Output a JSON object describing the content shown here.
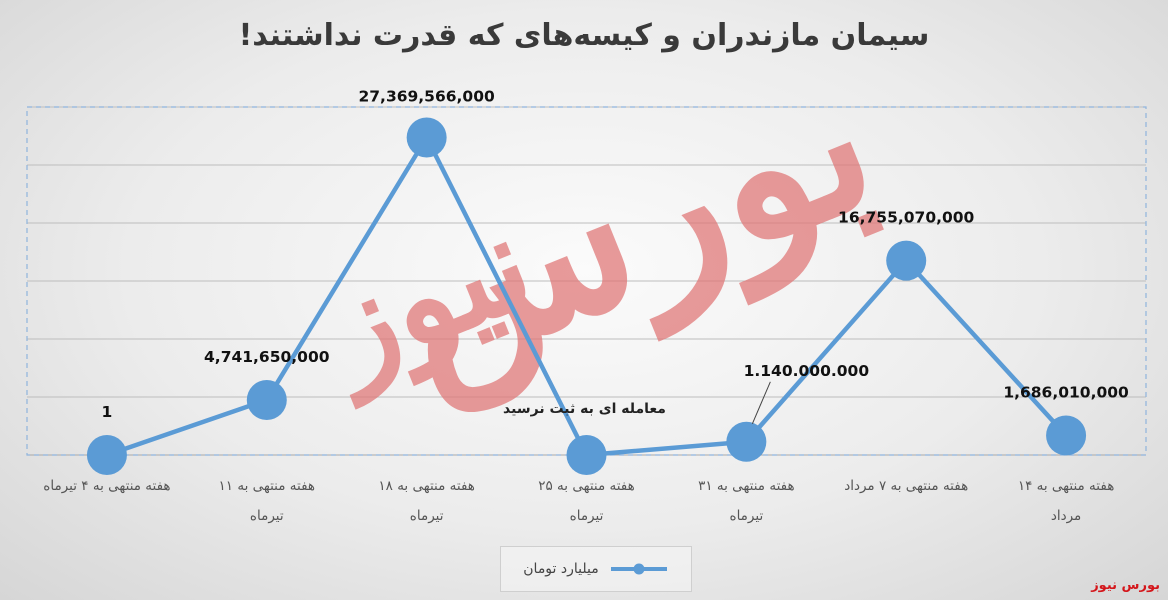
{
  "chart_data": {
    "type": "line",
    "title": "سیمان مازندران و کیسه‌های که قدرت نداشتند!",
    "categories": [
      [
        "هفته منتهی به ۴ تیرماه"
      ],
      [
        "هفته منتهی به ۱۱",
        "تیرماه"
      ],
      [
        "هفته منتهی به ۱۸",
        "تیرماه"
      ],
      [
        "هفته منتهی به ۲۵",
        "تیرماه"
      ],
      [
        "هفته منتهی به ۳۱",
        "تیرماه"
      ],
      [
        "هفته منتهی به ۷ مرداد"
      ],
      [
        "هفته منتهی به ۱۴",
        "مرداد"
      ]
    ],
    "series": [
      {
        "name": "میلیارد تومان",
        "color": "#5b9bd5",
        "values": [
          1,
          4741650000,
          27369566000,
          0,
          1140000000,
          16755070000,
          1686010000
        ],
        "labels": [
          "1",
          "4,741,650,000",
          "27,369,566,000",
          "",
          "1.140.000.000",
          "16,755,070,000",
          "1,686,010,000"
        ]
      }
    ],
    "annotations": [
      {
        "text": "معامله ای به ثبت نرسید",
        "category_index": 3
      }
    ],
    "ylim": [
      0,
      30000000000
    ],
    "grid": true,
    "legend_position": "bottom"
  },
  "watermark": {
    "text_main": "بورس",
    "text_second": "نیوز",
    "color": "#e07575"
  },
  "source_mark": "بورس نیوز"
}
